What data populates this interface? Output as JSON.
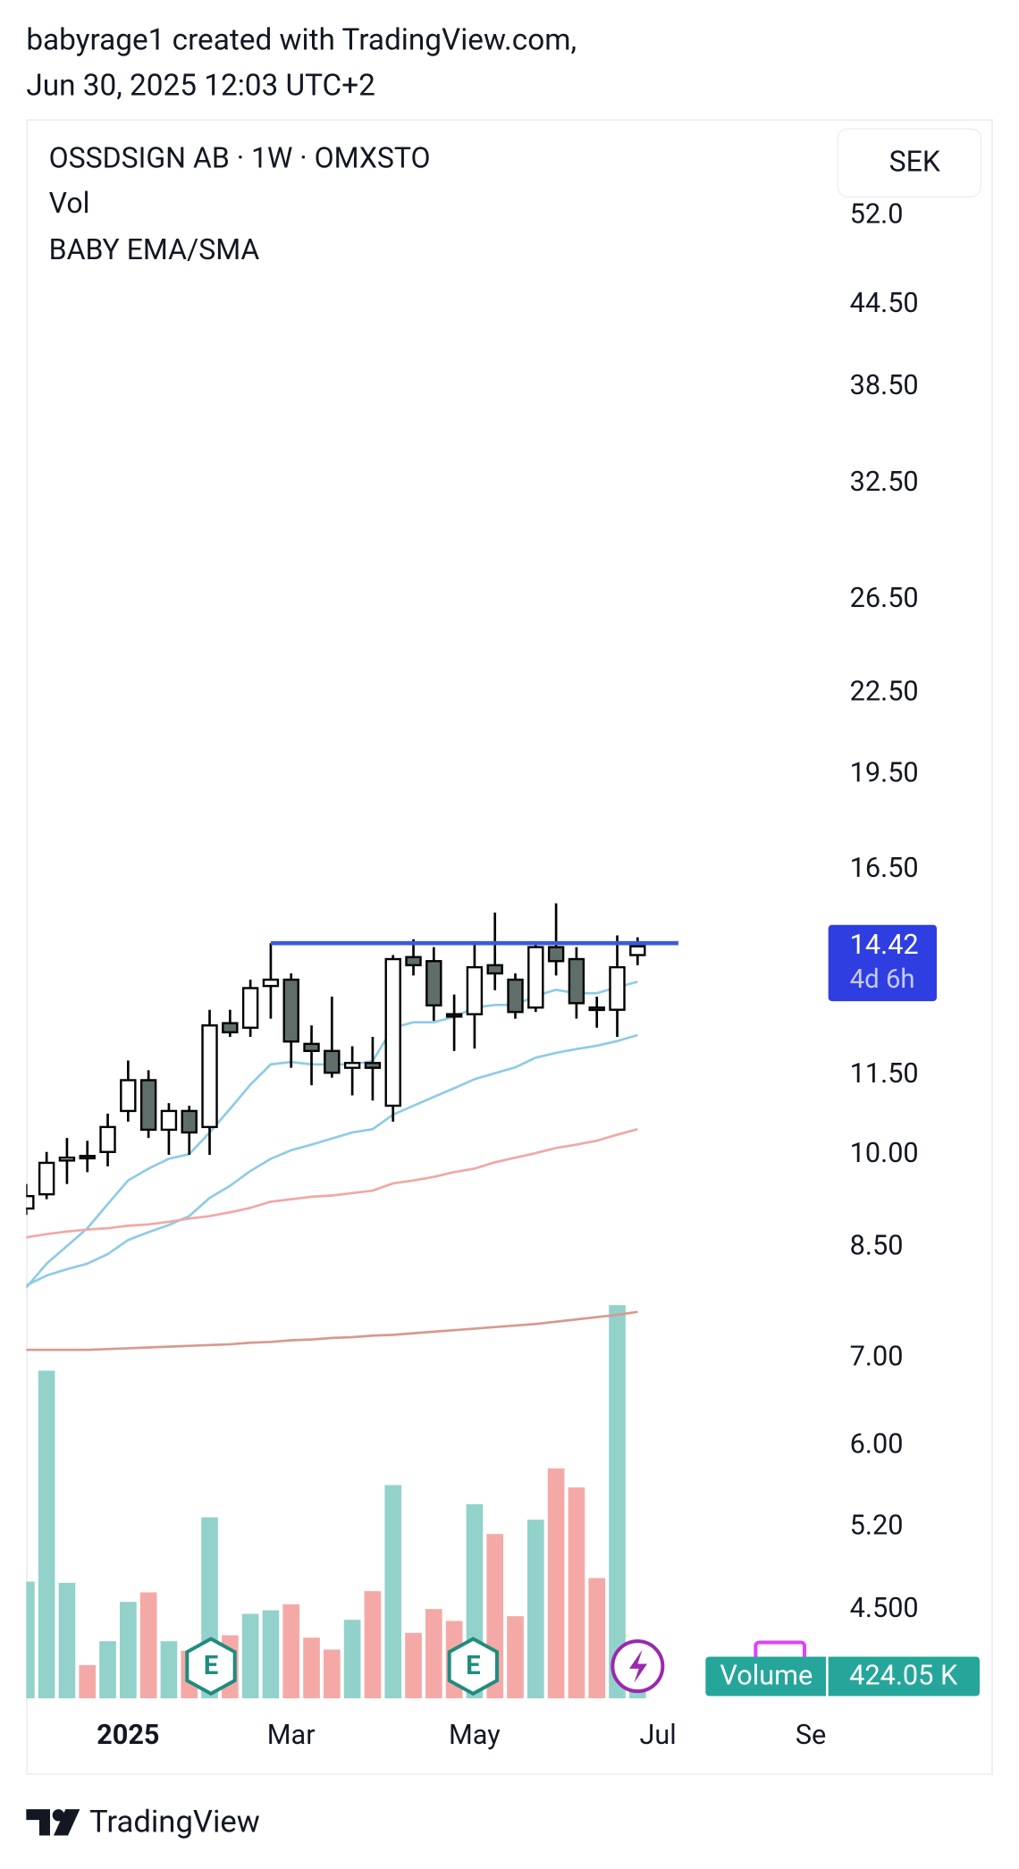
{
  "header": {
    "line1": "babyrage1 created with TradingView.com,",
    "line2": "Jun 30, 2025 12:03 UTC+2"
  },
  "chart_data": {
    "type": "candlestick",
    "legend": [
      "OSSDSIGN AB · 1W · OMXSTO",
      "Vol",
      "BABY EMA/SMA"
    ],
    "currency": "SEK",
    "x": [
      0,
      1,
      2,
      3,
      4,
      5,
      6,
      7,
      8,
      9,
      10,
      11,
      12,
      13,
      14,
      15,
      16,
      17,
      18,
      19,
      20,
      21,
      22,
      23,
      24,
      25,
      26,
      27,
      28,
      29,
      30
    ],
    "xlim": [
      0,
      47.37
    ],
    "xticks": [
      {
        "value": 5,
        "label": "2025"
      },
      {
        "value": 13,
        "label": "Mar"
      },
      {
        "value": 22,
        "label": "May"
      },
      {
        "value": 31,
        "label": "Jul"
      },
      {
        "value": 38.5,
        "label": "Se"
      }
    ],
    "log_scale": true,
    "ylim": [
      3.85,
      61.6
    ],
    "yticks": [
      {
        "value": 52,
        "label": "52.0"
      },
      {
        "value": 44.5,
        "label": "44.50"
      },
      {
        "value": 38.5,
        "label": "38.50"
      },
      {
        "value": 32.5,
        "label": "32.50"
      },
      {
        "value": 26.5,
        "label": "26.50"
      },
      {
        "value": 22.5,
        "label": "22.50"
      },
      {
        "value": 19.5,
        "label": "19.50"
      },
      {
        "value": 16.5,
        "label": "16.50"
      },
      {
        "value": 11.5,
        "label": "11.50"
      },
      {
        "value": 10,
        "label": "10.00"
      },
      {
        "value": 8.5,
        "label": "8.50"
      },
      {
        "value": 7,
        "label": "7.00"
      },
      {
        "value": 6,
        "label": "6.00"
      },
      {
        "value": 5.2,
        "label": "5.20"
      },
      {
        "value": 4.5,
        "label": "4.500"
      }
    ],
    "open": [
      9.1,
      9.33,
      9.9,
      9.98,
      10.05,
      10.8,
      11.4,
      10.45,
      10.8,
      10.5,
      12.6,
      12.5,
      13.45,
      13.6,
      12.15,
      12.0,
      11.65,
      11.75,
      10.9,
      14.15,
      14.05,
      12.8,
      12.8,
      13.95,
      13.6,
      12.95,
      14.4,
      14.1,
      12.95,
      12.9,
      14.2
    ],
    "high": [
      9.5,
      10.05,
      10.3,
      10.25,
      10.75,
      11.8,
      11.6,
      10.95,
      10.9,
      12.9,
      12.9,
      13.6,
      14.5,
      13.75,
      12.55,
      13.2,
      12.1,
      12.3,
      14.2,
      14.6,
      14.4,
      13.25,
      14.5,
      15.3,
      13.75,
      14.5,
      15.55,
      14.4,
      13.2,
      14.7,
      14.65
    ],
    "low": [
      9.0,
      9.25,
      9.5,
      9.7,
      9.8,
      10.6,
      10.3,
      10.0,
      10.0,
      10.0,
      12.3,
      12.3,
      12.7,
      11.65,
      11.3,
      11.45,
      11.1,
      11.0,
      10.6,
      13.7,
      12.65,
      12.0,
      12.05,
      13.35,
      12.7,
      12.85,
      13.7,
      12.7,
      12.5,
      12.3,
      13.95
    ],
    "close": [
      9.3,
      9.86,
      9.95,
      9.95,
      10.5,
      11.4,
      10.45,
      10.8,
      10.4,
      12.55,
      12.4,
      13.4,
      13.6,
      12.2,
      12.0,
      11.55,
      11.75,
      11.65,
      14.1,
      13.95,
      13.0,
      12.75,
      13.9,
      13.75,
      12.85,
      14.4,
      14.05,
      13.05,
      12.92,
      13.9,
      14.42
    ],
    "up_color": "#ffffff",
    "down_color": "#5f6e6a",
    "moving_averages": [
      {
        "color": "#8ecbe6",
        "values": [
          7.92,
          8.26,
          8.52,
          8.79,
          9.17,
          9.56,
          9.76,
          9.93,
          10.01,
          10.4,
          10.84,
          11.31,
          11.72,
          11.77,
          11.72,
          11.72,
          11.72,
          11.79,
          12.5,
          12.62,
          12.62,
          12.74,
          12.95,
          13.01,
          13.01,
          13.22,
          13.36,
          13.28,
          13.28,
          13.42,
          13.55
        ]
      },
      {
        "color": "#8ecbe6",
        "values": [
          7.95,
          8.09,
          8.18,
          8.26,
          8.4,
          8.61,
          8.73,
          8.84,
          8.98,
          9.27,
          9.47,
          9.72,
          9.93,
          10.08,
          10.18,
          10.29,
          10.4,
          10.46,
          10.73,
          10.9,
          11.07,
          11.24,
          11.42,
          11.54,
          11.66,
          11.86,
          11.96,
          12.04,
          12.11,
          12.21,
          12.34
        ]
      },
      {
        "color": "#f0a8a5",
        "values": [
          8.65,
          8.7,
          8.74,
          8.77,
          8.79,
          8.83,
          8.85,
          8.89,
          8.94,
          8.98,
          9.04,
          9.11,
          9.21,
          9.25,
          9.29,
          9.31,
          9.35,
          9.39,
          9.51,
          9.56,
          9.62,
          9.7,
          9.76,
          9.87,
          9.95,
          10.03,
          10.12,
          10.18,
          10.25,
          10.36,
          10.46
        ]
      },
      {
        "color": "#d8998f",
        "values": [
          7.1,
          7.1,
          7.1,
          7.1,
          7.11,
          7.12,
          7.13,
          7.14,
          7.15,
          7.16,
          7.17,
          7.19,
          7.2,
          7.22,
          7.23,
          7.25,
          7.26,
          7.28,
          7.29,
          7.31,
          7.33,
          7.35,
          7.37,
          7.39,
          7.41,
          7.43,
          7.46,
          7.49,
          7.52,
          7.55,
          7.59
        ]
      }
    ],
    "hline": {
      "value": 14.5,
      "x": [
        12,
        32
      ],
      "color": "#3b5bdb"
    },
    "last_price": {
      "value": 14.42,
      "countdown": "4d 6h",
      "color": "#2f3ee0"
    },
    "volume": {
      "name": "Volume",
      "last_label": "424.05 K",
      "ylim": [
        0,
        20000000
      ],
      "up_color": "#92d2cb",
      "down_color": "#f5a9a7",
      "values": [
        4900000,
        13750000,
        4850000,
        1400000,
        2400000,
        4050000,
        4450000,
        2400000,
        2000000,
        7600000,
        2650000,
        3550000,
        3700000,
        3950000,
        2550000,
        2050000,
        3300000,
        4500000,
        8950000,
        2750000,
        3750000,
        3250000,
        8150000,
        6900000,
        3450000,
        7500000,
        9650000,
        8850000,
        5050000,
        16500000,
        424050
      ]
    }
  },
  "footer": {
    "brand": "TradingView"
  }
}
